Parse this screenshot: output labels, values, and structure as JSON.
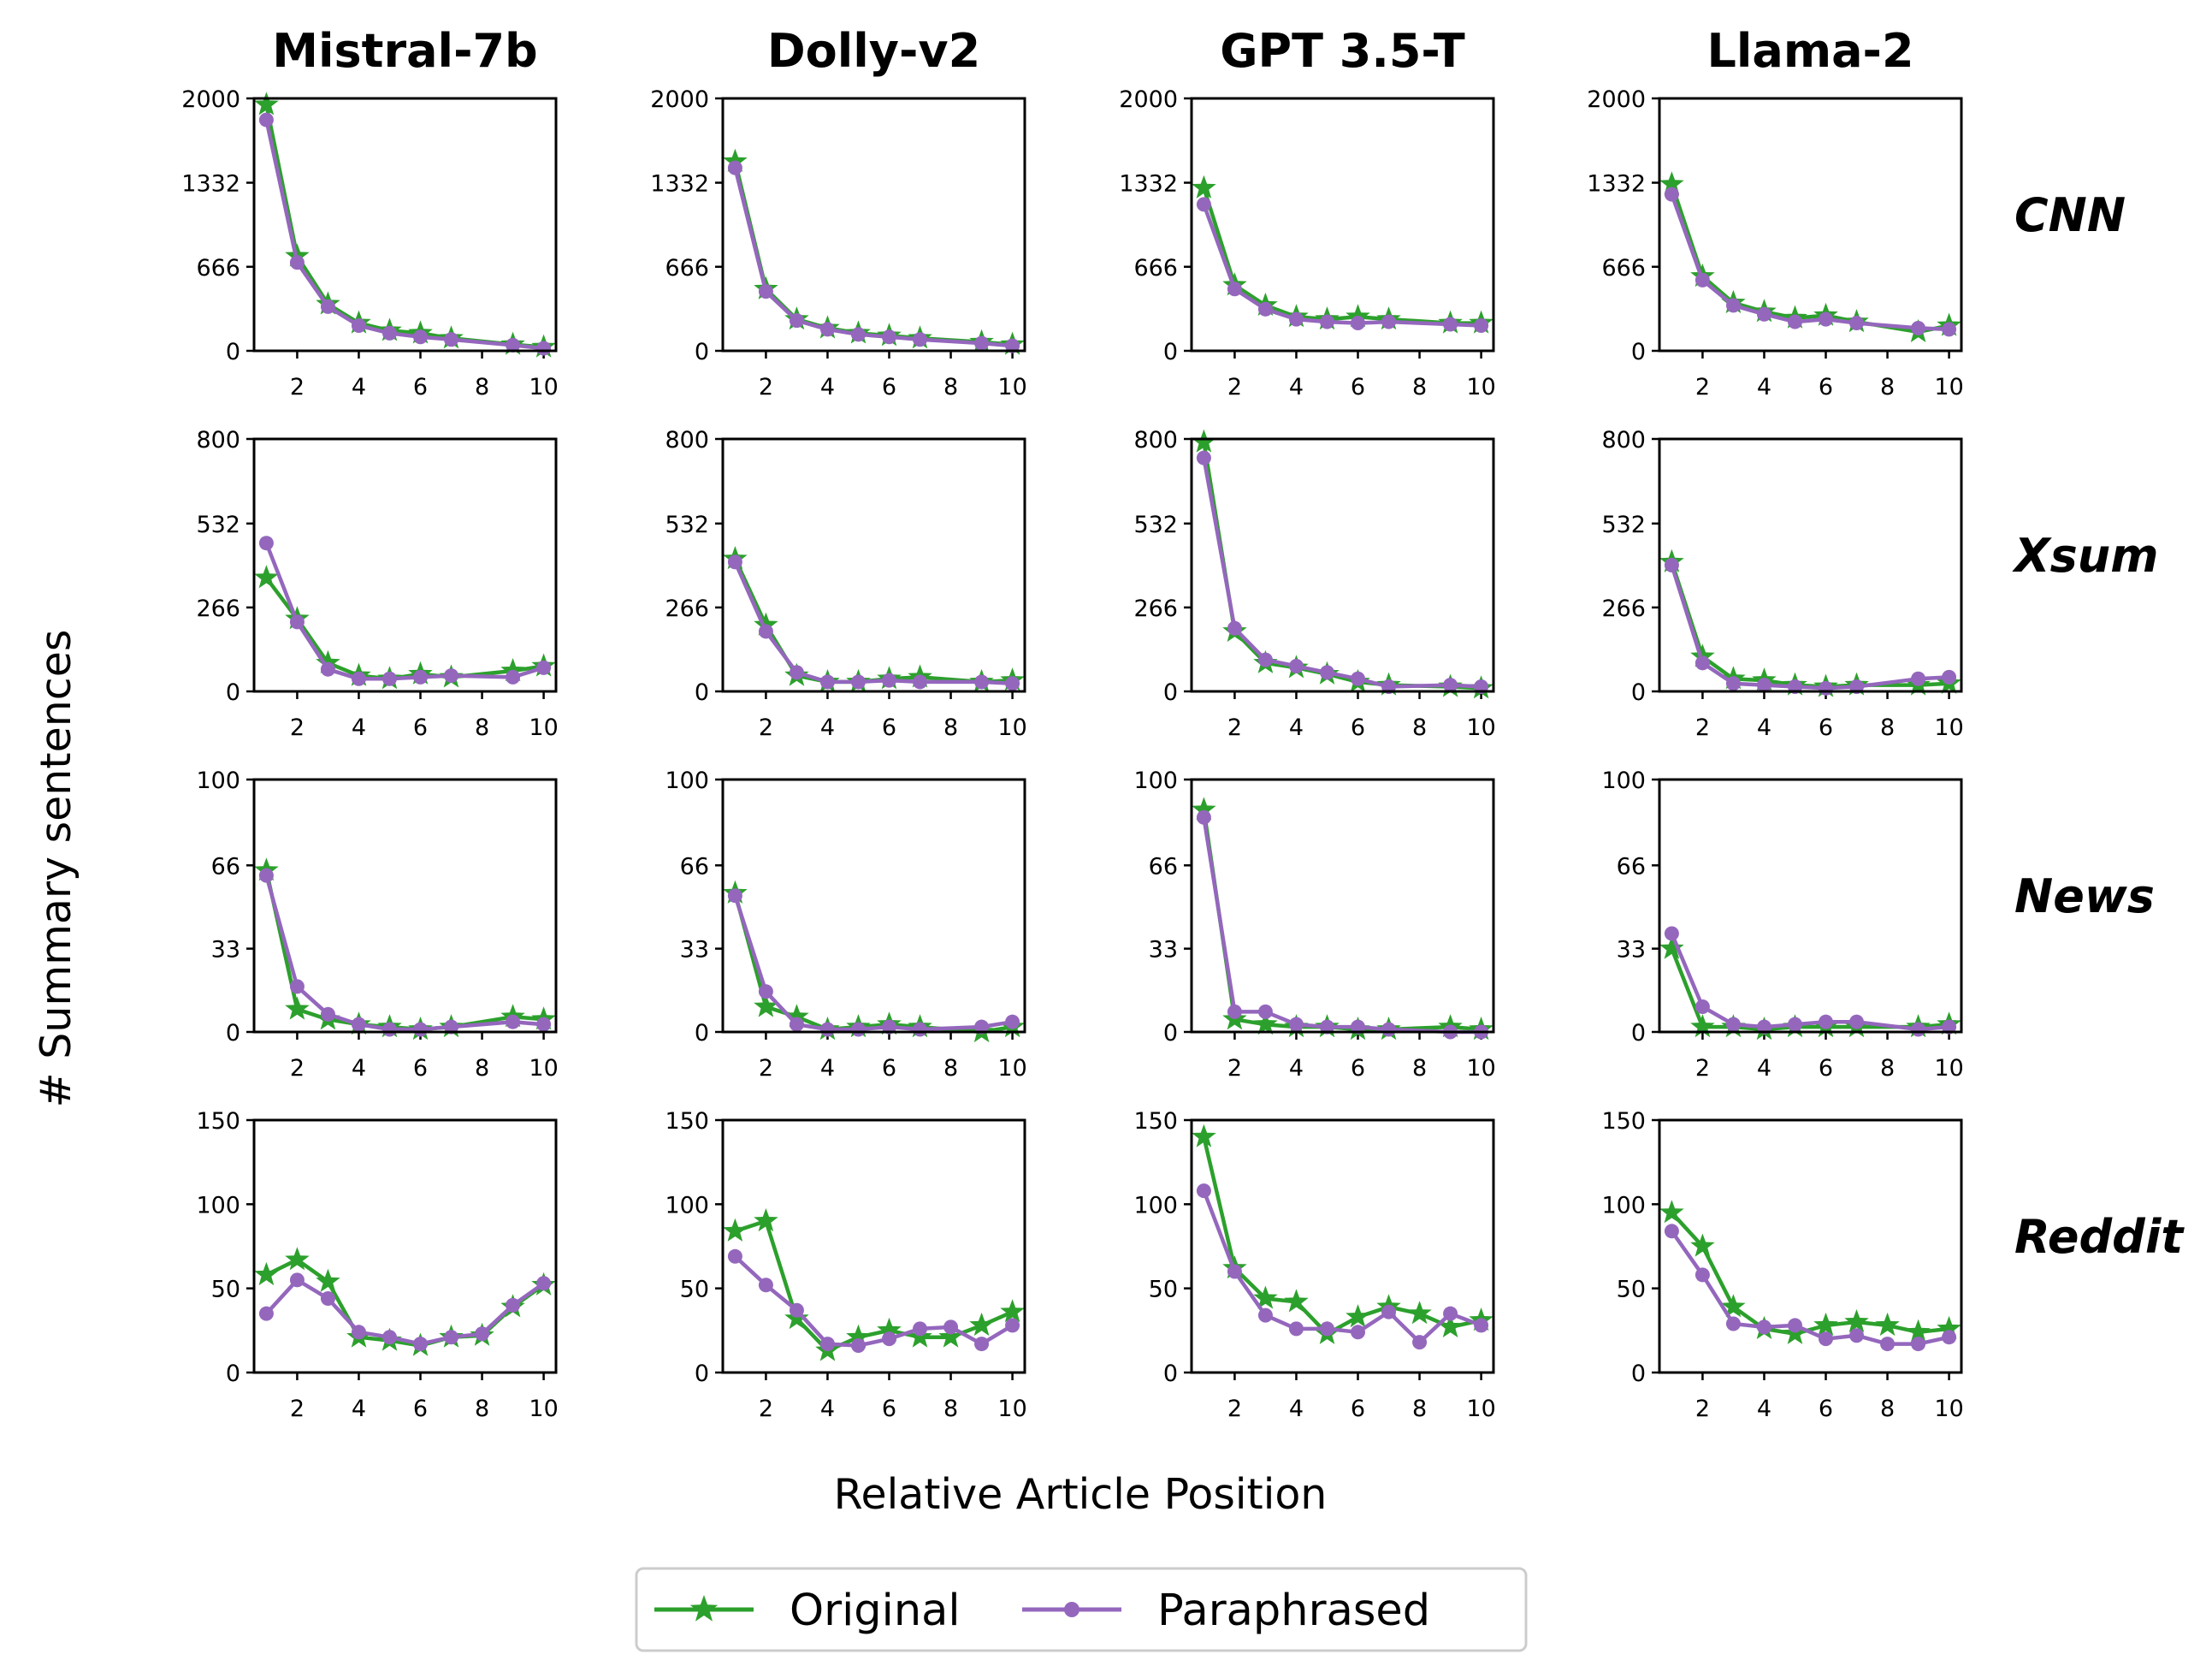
{
  "figure": {
    "xlabel": "Relative Article Position",
    "ylabel": "# Summary sentences",
    "col_titles": [
      "Mistral-7b",
      "Dolly-v2",
      "GPT 3.5-T",
      "Llama-2"
    ],
    "row_titles": [
      "CNN",
      "Xsum",
      "News",
      "Reddit"
    ],
    "legend": [
      {
        "label": "Original",
        "color": "#2ca02c",
        "marker": "star"
      },
      {
        "label": "Paraphrased",
        "color": "#9467bd",
        "marker": "circle"
      }
    ]
  },
  "chart_data": [
    {
      "type": "line",
      "model": "Mistral-7b",
      "dataset": "CNN",
      "x": [
        1,
        2,
        3,
        4,
        5,
        6,
        7,
        9,
        10
      ],
      "ylim": [
        0,
        2000
      ],
      "yticks": [
        0,
        666,
        1332,
        2000
      ],
      "xticks": [
        2,
        4,
        6,
        8,
        10
      ],
      "series": [
        {
          "name": "Original",
          "values": [
            1950,
            750,
            370,
            220,
            160,
            140,
            100,
            50,
            30
          ]
        },
        {
          "name": "Paraphrased",
          "values": [
            1830,
            700,
            350,
            200,
            140,
            110,
            90,
            45,
            20
          ]
        }
      ]
    },
    {
      "type": "line",
      "model": "Dolly-v2",
      "dataset": "CNN",
      "x": [
        1,
        2,
        3,
        4,
        5,
        6,
        7,
        9,
        10
      ],
      "ylim": [
        0,
        2000
      ],
      "yticks": [
        0,
        666,
        1332,
        2000
      ],
      "xticks": [
        2,
        4,
        6,
        8,
        10
      ],
      "series": [
        {
          "name": "Original",
          "values": [
            1500,
            490,
            250,
            180,
            140,
            120,
            100,
            70,
            50
          ]
        },
        {
          "name": "Paraphrased",
          "values": [
            1450,
            470,
            240,
            170,
            130,
            110,
            90,
            60,
            40
          ]
        }
      ]
    },
    {
      "type": "line",
      "model": "GPT 3.5-T",
      "dataset": "CNN",
      "x": [
        1,
        2,
        3,
        4,
        5,
        6,
        7,
        9,
        10
      ],
      "ylim": [
        0,
        2000
      ],
      "yticks": [
        0,
        666,
        1332,
        2000
      ],
      "xticks": [
        2,
        4,
        6,
        8,
        10
      ],
      "series": [
        {
          "name": "Original",
          "values": [
            1290,
            520,
            360,
            270,
            250,
            270,
            250,
            220,
            220
          ]
        },
        {
          "name": "Paraphrased",
          "values": [
            1160,
            490,
            330,
            250,
            230,
            220,
            230,
            210,
            200
          ]
        }
      ]
    },
    {
      "type": "line",
      "model": "Llama-2",
      "dataset": "CNN",
      "x": [
        1,
        2,
        3,
        4,
        5,
        6,
        7,
        9,
        10
      ],
      "ylim": [
        0,
        2000
      ],
      "yticks": [
        0,
        666,
        1332,
        2000
      ],
      "xticks": [
        2,
        4,
        6,
        8,
        10
      ],
      "series": [
        {
          "name": "Original",
          "values": [
            1320,
            590,
            380,
            310,
            260,
            280,
            230,
            150,
            200
          ]
        },
        {
          "name": "Paraphrased",
          "values": [
            1240,
            560,
            360,
            290,
            230,
            250,
            220,
            180,
            170
          ]
        }
      ]
    },
    {
      "type": "line",
      "model": "Mistral-7b",
      "dataset": "Xsum",
      "x": [
        1,
        2,
        3,
        4,
        5,
        6,
        7,
        9,
        10
      ],
      "ylim": [
        0,
        800
      ],
      "yticks": [
        0,
        266,
        532,
        800
      ],
      "xticks": [
        2,
        4,
        6,
        8,
        10
      ],
      "series": [
        {
          "name": "Original",
          "values": [
            360,
            230,
            90,
            50,
            40,
            55,
            45,
            65,
            80
          ]
        },
        {
          "name": "Paraphrased",
          "values": [
            470,
            220,
            70,
            40,
            40,
            45,
            50,
            45,
            75
          ]
        }
      ]
    },
    {
      "type": "line",
      "model": "Dolly-v2",
      "dataset": "Xsum",
      "x": [
        1,
        2,
        3,
        4,
        5,
        6,
        7,
        9,
        10
      ],
      "ylim": [
        0,
        800
      ],
      "yticks": [
        0,
        266,
        532,
        800
      ],
      "xticks": [
        2,
        4,
        6,
        8,
        10
      ],
      "series": [
        {
          "name": "Original",
          "values": [
            420,
            210,
            50,
            30,
            30,
            40,
            45,
            30,
            35
          ]
        },
        {
          "name": "Paraphrased",
          "values": [
            410,
            190,
            60,
            30,
            30,
            35,
            30,
            30,
            25
          ]
        }
      ]
    },
    {
      "type": "line",
      "model": "GPT 3.5-T",
      "dataset": "Xsum",
      "x": [
        1,
        2,
        3,
        4,
        5,
        6,
        7,
        9,
        10
      ],
      "ylim": [
        0,
        800
      ],
      "yticks": [
        0,
        266,
        532,
        800
      ],
      "xticks": [
        2,
        4,
        6,
        8,
        10
      ],
      "series": [
        {
          "name": "Original",
          "values": [
            790,
            190,
            90,
            75,
            55,
            30,
            20,
            15,
            10
          ]
        },
        {
          "name": "Paraphrased",
          "values": [
            740,
            200,
            100,
            80,
            60,
            40,
            15,
            20,
            15
          ]
        }
      ]
    },
    {
      "type": "line",
      "model": "Llama-2",
      "dataset": "Xsum",
      "x": [
        1,
        2,
        3,
        4,
        5,
        6,
        7,
        9,
        10
      ],
      "ylim": [
        0,
        800
      ],
      "yticks": [
        0,
        266,
        532,
        800
      ],
      "xticks": [
        2,
        4,
        6,
        8,
        10
      ],
      "series": [
        {
          "name": "Original",
          "values": [
            410,
            110,
            40,
            35,
            20,
            15,
            20,
            20,
            25
          ]
        },
        {
          "name": "Paraphrased",
          "values": [
            400,
            90,
            25,
            20,
            15,
            10,
            15,
            40,
            45
          ]
        }
      ]
    },
    {
      "type": "line",
      "model": "Mistral-7b",
      "dataset": "News",
      "x": [
        1,
        2,
        3,
        4,
        5,
        6,
        7,
        9,
        10
      ],
      "ylim": [
        0,
        100
      ],
      "yticks": [
        0,
        33,
        66,
        100
      ],
      "xticks": [
        2,
        4,
        6,
        8,
        10
      ],
      "series": [
        {
          "name": "Original",
          "values": [
            64,
            9,
            5,
            3,
            2,
            1,
            2,
            6,
            5
          ]
        },
        {
          "name": "Paraphrased",
          "values": [
            62,
            18,
            7,
            3,
            1,
            1,
            2,
            4,
            3
          ]
        }
      ]
    },
    {
      "type": "line",
      "model": "Dolly-v2",
      "dataset": "News",
      "x": [
        1,
        2,
        3,
        4,
        5,
        6,
        7,
        9,
        10
      ],
      "ylim": [
        0,
        100
      ],
      "yticks": [
        0,
        33,
        66,
        100
      ],
      "xticks": [
        2,
        4,
        6,
        8,
        10
      ],
      "series": [
        {
          "name": "Original",
          "values": [
            55,
            10,
            6,
            1,
            2,
            3,
            2,
            0,
            2
          ]
        },
        {
          "name": "Paraphrased",
          "values": [
            54,
            16,
            3,
            1,
            1,
            2,
            1,
            2,
            4
          ]
        }
      ]
    },
    {
      "type": "line",
      "model": "GPT 3.5-T",
      "dataset": "News",
      "x": [
        1,
        2,
        3,
        4,
        5,
        6,
        7,
        9,
        10
      ],
      "ylim": [
        0,
        100
      ],
      "yticks": [
        0,
        33,
        66,
        100
      ],
      "xticks": [
        2,
        4,
        6,
        8,
        10
      ],
      "series": [
        {
          "name": "Original",
          "values": [
            88,
            5,
            3,
            2,
            2,
            1,
            1,
            2,
            1
          ]
        },
        {
          "name": "Paraphrased",
          "values": [
            85,
            8,
            8,
            3,
            2,
            2,
            1,
            0,
            0
          ]
        }
      ]
    },
    {
      "type": "line",
      "model": "Llama-2",
      "dataset": "News",
      "x": [
        1,
        2,
        3,
        4,
        5,
        6,
        7,
        9,
        10
      ],
      "ylim": [
        0,
        100
      ],
      "yticks": [
        0,
        33,
        66,
        100
      ],
      "xticks": [
        2,
        4,
        6,
        8,
        10
      ],
      "series": [
        {
          "name": "Original",
          "values": [
            33,
            2,
            2,
            1,
            2,
            2,
            2,
            2,
            3
          ]
        },
        {
          "name": "Paraphrased",
          "values": [
            39,
            10,
            3,
            2,
            3,
            4,
            4,
            1,
            2
          ]
        }
      ]
    },
    {
      "type": "line",
      "model": "Mistral-7b",
      "dataset": "Reddit",
      "x": [
        1,
        2,
        3,
        4,
        5,
        6,
        7,
        8,
        9,
        10
      ],
      "ylim": [
        0,
        150
      ],
      "yticks": [
        0,
        50,
        100,
        150
      ],
      "xticks": [
        2,
        4,
        6,
        8,
        10
      ],
      "series": [
        {
          "name": "Original",
          "values": [
            58,
            67,
            54,
            21,
            19,
            16,
            21,
            22,
            39,
            52
          ]
        },
        {
          "name": "Paraphrased",
          "values": [
            35,
            55,
            44,
            24,
            21,
            17,
            21,
            23,
            40,
            53
          ]
        }
      ]
    },
    {
      "type": "line",
      "model": "Dolly-v2",
      "dataset": "Reddit",
      "x": [
        1,
        2,
        3,
        4,
        5,
        6,
        7,
        8,
        9,
        10
      ],
      "ylim": [
        0,
        150
      ],
      "yticks": [
        0,
        50,
        100,
        150
      ],
      "xticks": [
        2,
        4,
        6,
        8,
        10
      ],
      "series": [
        {
          "name": "Original",
          "values": [
            84,
            90,
            32,
            13,
            21,
            25,
            21,
            21,
            28,
            36
          ]
        },
        {
          "name": "Paraphrased",
          "values": [
            69,
            52,
            37,
            17,
            16,
            20,
            26,
            27,
            17,
            28
          ]
        }
      ]
    },
    {
      "type": "line",
      "model": "GPT 3.5-T",
      "dataset": "Reddit",
      "x": [
        1,
        2,
        3,
        4,
        5,
        6,
        7,
        8,
        9,
        10
      ],
      "ylim": [
        0,
        150
      ],
      "yticks": [
        0,
        50,
        100,
        150
      ],
      "xticks": [
        2,
        4,
        6,
        8,
        10
      ],
      "series": [
        {
          "name": "Original",
          "values": [
            140,
            62,
            44,
            42,
            23,
            33,
            39,
            35,
            27,
            31
          ]
        },
        {
          "name": "Paraphrased",
          "values": [
            108,
            60,
            34,
            26,
            26,
            24,
            36,
            18,
            35,
            28
          ]
        }
      ]
    },
    {
      "type": "line",
      "model": "Llama-2",
      "dataset": "Reddit",
      "x": [
        1,
        2,
        3,
        4,
        5,
        6,
        7,
        8,
        9,
        10
      ],
      "ylim": [
        0,
        150
      ],
      "yticks": [
        0,
        50,
        100,
        150
      ],
      "xticks": [
        2,
        4,
        6,
        8,
        10
      ],
      "series": [
        {
          "name": "Original",
          "values": [
            95,
            75,
            39,
            26,
            23,
            28,
            30,
            28,
            24,
            26
          ]
        },
        {
          "name": "Paraphrased",
          "values": [
            84,
            58,
            29,
            27,
            28,
            20,
            22,
            17,
            17,
            21
          ]
        }
      ]
    }
  ]
}
